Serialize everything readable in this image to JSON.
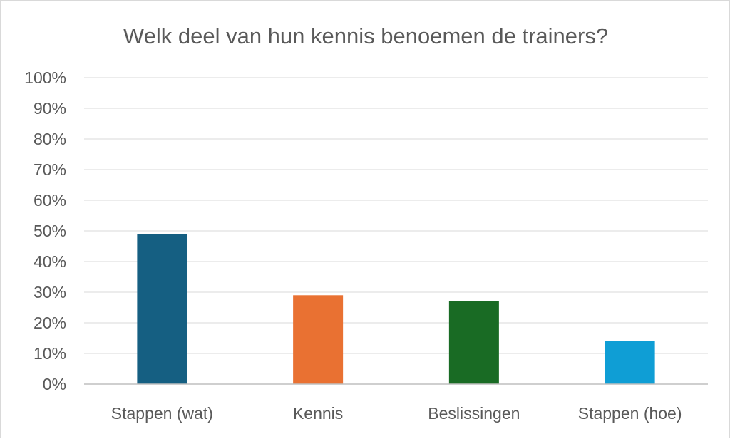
{
  "chart_data": {
    "type": "bar",
    "title": "Welk deel van hun kennis benoemen de trainers?",
    "xlabel": "",
    "ylabel": "",
    "categories": [
      "Stappen (wat)",
      "Kennis",
      "Beslissingen",
      "Stappen (hoe)"
    ],
    "values": [
      49,
      29,
      27,
      14
    ],
    "colors": [
      "#155f82",
      "#e97132",
      "#196b24",
      "#0f9ed5"
    ],
    "ylim": [
      0,
      100
    ],
    "yticks": [
      "0%",
      "10%",
      "20%",
      "30%",
      "40%",
      "50%",
      "60%",
      "70%",
      "80%",
      "90%",
      "100%"
    ],
    "grid": true,
    "legend": "none"
  }
}
